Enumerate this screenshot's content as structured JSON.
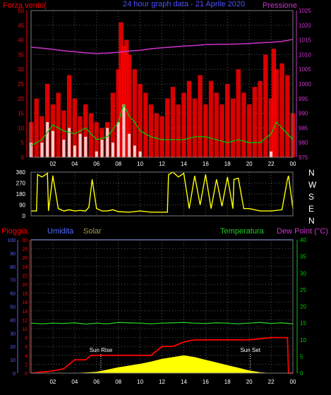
{
  "colors": {
    "background": "#000000",
    "wind_avg": "#ff0000",
    "wind_gust": "#ff0000",
    "wind_low": "#ffffff",
    "wind_green": "#00cc00",
    "pressure": "#cc33cc",
    "direction": "#ffff00",
    "rain": "#ff0000",
    "humidity": "#4f6bff",
    "solar": "#ffff00",
    "temperature": "#22cc22",
    "dew_point": "#cc33cc",
    "axis_text": "#ffffff",
    "axis_red": "#ff0000",
    "axis_blue": "#5f5fff",
    "axis_green": "#00cc00",
    "grid": "#555555"
  },
  "chart_data": [
    {
      "type": "line",
      "title": "24 hour graph data - 21 Aprile 2020",
      "left_label": "Forza vento(",
      "right_label": "Pressione",
      "x_ticks": [
        "02",
        "04",
        "06",
        "08",
        "10",
        "12",
        "14",
        "16",
        "18",
        "20",
        "22",
        "00"
      ],
      "x_range_hours": [
        0,
        24
      ],
      "ylim_left": [
        0,
        50
      ],
      "yticks_left": [
        0,
        5,
        10,
        15,
        20,
        25,
        30,
        35,
        40,
        45,
        50
      ],
      "ylim_right": [
        975,
        1025
      ],
      "yticks_right": [
        975,
        980,
        985,
        990,
        995,
        1000,
        1005,
        1010,
        1015,
        1020,
        1025
      ],
      "grid": true,
      "series": [
        {
          "role": "gust",
          "axis": "left",
          "x": [
            0,
            0.5,
            1,
            1.5,
            2,
            2.5,
            3,
            3.5,
            4,
            4.5,
            5,
            5.5,
            6,
            6.5,
            7,
            7.5,
            8,
            8.25,
            8.5,
            8.75,
            9,
            9.5,
            10,
            10.5,
            11,
            11.5,
            12,
            12.5,
            13,
            13.5,
            14,
            14.5,
            15,
            15.5,
            16,
            16.5,
            17,
            17.5,
            18,
            18.5,
            19,
            19.5,
            20,
            20.5,
            21,
            21.5,
            22,
            22.25,
            22.5,
            23,
            23.5,
            24
          ],
          "y": [
            12,
            20,
            14,
            25,
            18,
            22,
            16,
            28,
            20,
            14,
            18,
            15,
            12,
            10,
            12,
            22,
            30,
            46,
            38,
            40,
            35,
            30,
            25,
            22,
            18,
            15,
            14,
            20,
            24,
            18,
            22,
            26,
            20,
            28,
            18,
            26,
            22,
            18,
            25,
            20,
            30,
            22,
            18,
            24,
            26,
            35,
            20,
            37,
            30,
            32,
            28,
            15
          ]
        },
        {
          "role": "average",
          "axis": "left",
          "x": [
            0,
            1,
            2,
            3,
            4,
            5,
            6,
            7,
            8,
            8.5,
            9,
            9.5,
            10,
            11,
            12,
            13,
            14,
            15,
            16,
            17,
            18,
            19,
            20,
            21,
            22,
            22.5,
            23,
            24
          ],
          "y": [
            4,
            6,
            11,
            9,
            8,
            10,
            6,
            7,
            12,
            18,
            14,
            12,
            9,
            7,
            6,
            6,
            6,
            7,
            7,
            6,
            5,
            6,
            5,
            5,
            8,
            12,
            10,
            6
          ]
        },
        {
          "role": "low",
          "axis": "left",
          "x": [
            0,
            1,
            1.5,
            2,
            3,
            3.5,
            4,
            4.5,
            5,
            6,
            6.5,
            7,
            7.5,
            8,
            8.5,
            9,
            9.5,
            10,
            11,
            12,
            13,
            14,
            16,
            18,
            20,
            22,
            24
          ],
          "y": [
            5,
            5,
            12,
            9,
            6,
            10,
            4,
            8,
            7,
            2,
            6,
            10,
            5,
            12,
            18,
            8,
            4,
            2,
            0,
            0,
            0,
            0,
            0,
            0,
            0,
            2,
            0
          ]
        },
        {
          "role": "pressure",
          "axis": "right",
          "x": [
            0,
            1,
            2,
            3,
            4,
            5,
            6,
            7,
            8,
            9,
            10,
            11,
            12,
            13,
            14,
            15,
            16,
            17,
            18,
            19,
            20,
            21,
            22,
            23,
            24
          ],
          "y": [
            1012.5,
            1012.2,
            1011.8,
            1011.3,
            1011.0,
            1010.6,
            1010.4,
            1010.5,
            1010.8,
            1011.2,
            1011.5,
            1012.0,
            1012.3,
            1012.6,
            1012.9,
            1013.1,
            1013.4,
            1013.5,
            1013.5,
            1013.6,
            1013.8,
            1014.0,
            1014.2,
            1014.5,
            1015.2
          ]
        }
      ]
    },
    {
      "type": "line",
      "right_labels": [
        "N",
        "W",
        "S",
        "E",
        "N"
      ],
      "x_range_hours": [
        0,
        24
      ],
      "ylim": [
        0,
        360
      ],
      "yticks": [
        0,
        90,
        180,
        270,
        360
      ],
      "grid": true,
      "series": [
        {
          "role": "direction",
          "x": [
            0,
            0.5,
            0.6,
            1,
            1.5,
            1.6,
            2,
            2.5,
            3,
            3.5,
            4,
            4.5,
            5,
            5.3,
            5.6,
            6,
            6.5,
            7,
            7.5,
            8,
            9,
            10,
            11,
            12,
            12.5,
            12.6,
            13,
            13.5,
            14,
            14.5,
            15,
            15.5,
            16,
            16.5,
            17,
            17.5,
            18,
            18.5,
            18.6,
            19,
            19.5,
            20,
            21,
            22,
            23,
            23.5,
            23.6,
            24
          ],
          "y": [
            40,
            40,
            340,
            320,
            350,
            40,
            330,
            60,
            40,
            50,
            40,
            45,
            40,
            70,
            300,
            60,
            40,
            40,
            50,
            35,
            30,
            40,
            30,
            30,
            30,
            340,
            360,
            320,
            350,
            60,
            330,
            90,
            340,
            60,
            300,
            80,
            320,
            60,
            300,
            310,
            60,
            60,
            40,
            40,
            50,
            300,
            330,
            60
          ]
        }
      ]
    },
    {
      "type": "line",
      "labels_left": [
        "Pioggia",
        "Umidita",
        "Solar"
      ],
      "labels_right": [
        "Temperatura",
        "Dew Point (°C)"
      ],
      "x_ticks": [
        "02",
        "04",
        "06",
        "08",
        "10",
        "12",
        "14",
        "16",
        "18",
        "20",
        "22",
        "00"
      ],
      "x_range_hours": [
        0,
        24
      ],
      "ylim_rain": [
        0,
        30
      ],
      "yticks_rain": [
        0,
        2,
        4,
        6,
        8,
        10,
        12,
        14,
        16,
        18,
        20,
        22,
        24,
        26,
        28,
        30
      ],
      "ylim_humidity": [
        0,
        100
      ],
      "yticks_humidity": [
        0,
        10,
        20,
        30,
        40,
        50,
        60,
        70,
        80,
        90,
        100
      ],
      "ylim_temp": [
        0,
        40
      ],
      "yticks_temp": [
        0,
        5,
        10,
        15,
        20,
        25,
        30,
        35,
        40
      ],
      "grid": true,
      "annotations": [
        {
          "text": "Sun Rise",
          "x": 6.4
        },
        {
          "text": "Sun Set",
          "x": 20.1
        }
      ],
      "series": [
        {
          "role": "rain",
          "axis": "rain",
          "x": [
            0,
            2,
            3,
            3.5,
            4,
            5,
            5.5,
            6,
            9,
            11,
            11.5,
            12,
            13,
            14,
            15,
            20,
            22,
            23.5,
            23.6,
            24
          ],
          "y": [
            0,
            0.5,
            1,
            2,
            3,
            3,
            4,
            4,
            4,
            4,
            5,
            6,
            6,
            7,
            7.5,
            7.5,
            8,
            8,
            0,
            0
          ]
        },
        {
          "role": "humidity",
          "axis": "humidity",
          "x": [
            0,
            24
          ],
          "y": [
            100,
            100
          ]
        },
        {
          "role": "solar",
          "axis": "rain",
          "x": [
            0,
            2,
            4,
            6,
            7,
            8,
            9,
            10,
            11,
            12,
            13,
            14,
            15,
            16,
            17,
            18,
            19,
            20,
            21,
            22,
            24
          ],
          "y": [
            0,
            0,
            0,
            0.3,
            0.8,
            1.3,
            1.7,
            2.1,
            2.6,
            3.2,
            3.6,
            4.0,
            3.6,
            3.0,
            2.4,
            1.8,
            1.2,
            0.6,
            0.2,
            0,
            0
          ]
        },
        {
          "role": "temperature",
          "axis": "temp",
          "x": [
            0,
            1,
            2,
            3,
            4,
            5,
            6,
            7,
            8,
            9,
            10,
            11,
            12,
            13,
            14,
            15,
            16,
            17,
            18,
            19,
            20,
            21,
            22,
            23,
            24
          ],
          "y": [
            15.0,
            14.8,
            15.0,
            14.9,
            15.1,
            14.7,
            15.0,
            14.8,
            15.2,
            15.1,
            15.0,
            14.8,
            15.0,
            15.1,
            15.2,
            15.0,
            14.9,
            15.1,
            15.0,
            14.8,
            15.0,
            15.2,
            14.9,
            15.1,
            14.8
          ]
        }
      ]
    }
  ]
}
